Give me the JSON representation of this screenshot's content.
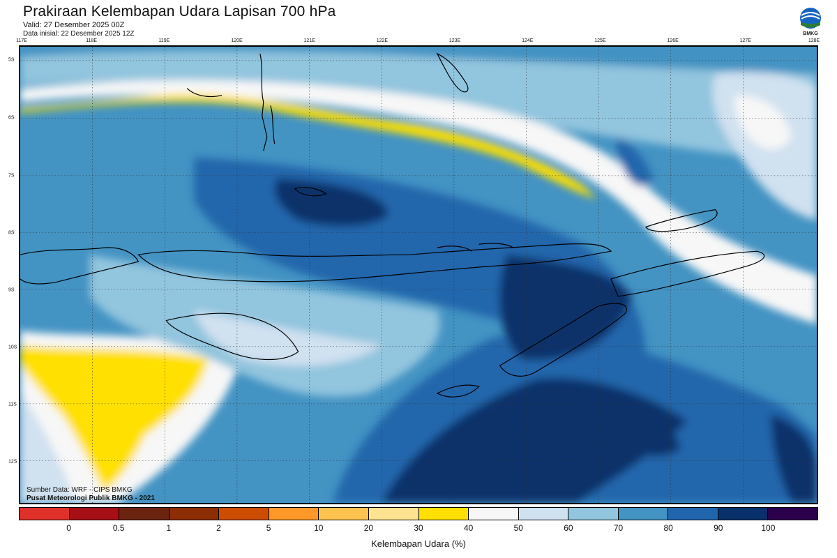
{
  "header": {
    "title": "Prakiraan Kelembapan Udara Lapisan 700 hPa",
    "valid": "Valid: 27 Desember 2025 00Z",
    "init": "Data inisial: 22 Desember 2025 12Z"
  },
  "logo": {
    "text": "BMKG",
    "icon": "bmkg-logo-icon"
  },
  "axes": {
    "longitudes": [
      "117E",
      "118E",
      "119E",
      "120E",
      "121E",
      "122E",
      "123E",
      "124E",
      "125E",
      "126E",
      "127E",
      "128E"
    ],
    "latitudes": [
      "5S",
      "6S",
      "7S",
      "8S",
      "9S",
      "10S",
      "11S",
      "12S"
    ]
  },
  "credits": {
    "line1": "Sumber Data: WRF - CIPS BMKG",
    "line2": "Pusat Meteorologi Publik BMKG - 2021"
  },
  "legend": {
    "title": "Kelembapan Udara (%)",
    "ticks": [
      "0",
      "0.5",
      "1",
      "2",
      "5",
      "10",
      "20",
      "30",
      "40",
      "50",
      "60",
      "70",
      "80",
      "90",
      "100"
    ],
    "colors": [
      "#e0302a",
      "#a50f15",
      "#6b2410",
      "#8c2d04",
      "#cc4c02",
      "#fe9929",
      "#fec44f",
      "#fee391",
      "#ffe000",
      "#f7f7f7",
      "#d0e1f0",
      "#92c5de",
      "#4393c3",
      "#2166ac",
      "#08306b",
      "#2d004b"
    ]
  }
}
